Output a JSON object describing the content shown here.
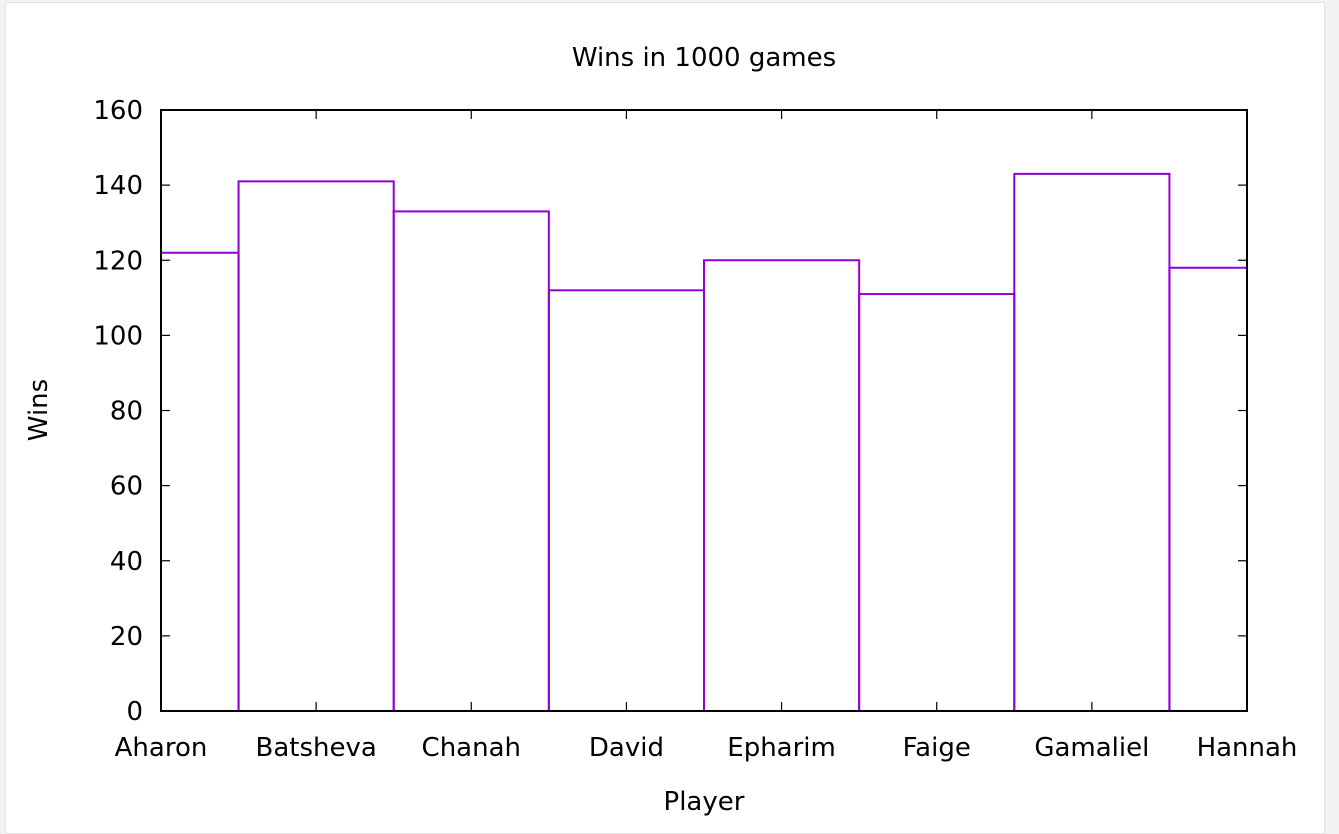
{
  "chart_data": {
    "type": "bar",
    "title": "Wins in 1000 games",
    "xlabel": "Player",
    "ylabel": "Wins",
    "categories": [
      "Aharon",
      "Batsheva",
      "Chanah",
      "David",
      "Epharim",
      "Faige",
      "Gamaliel",
      "Hannah"
    ],
    "values": [
      122,
      141,
      133,
      112,
      120,
      111,
      143,
      118
    ],
    "ylim": [
      0,
      160
    ],
    "yticks": [
      "0",
      "20",
      "40",
      "60",
      "80",
      "100",
      "120",
      "140",
      "160"
    ],
    "grid": false,
    "legend": "none",
    "bar_color": "#9400d3",
    "style": "histogram-steps"
  }
}
